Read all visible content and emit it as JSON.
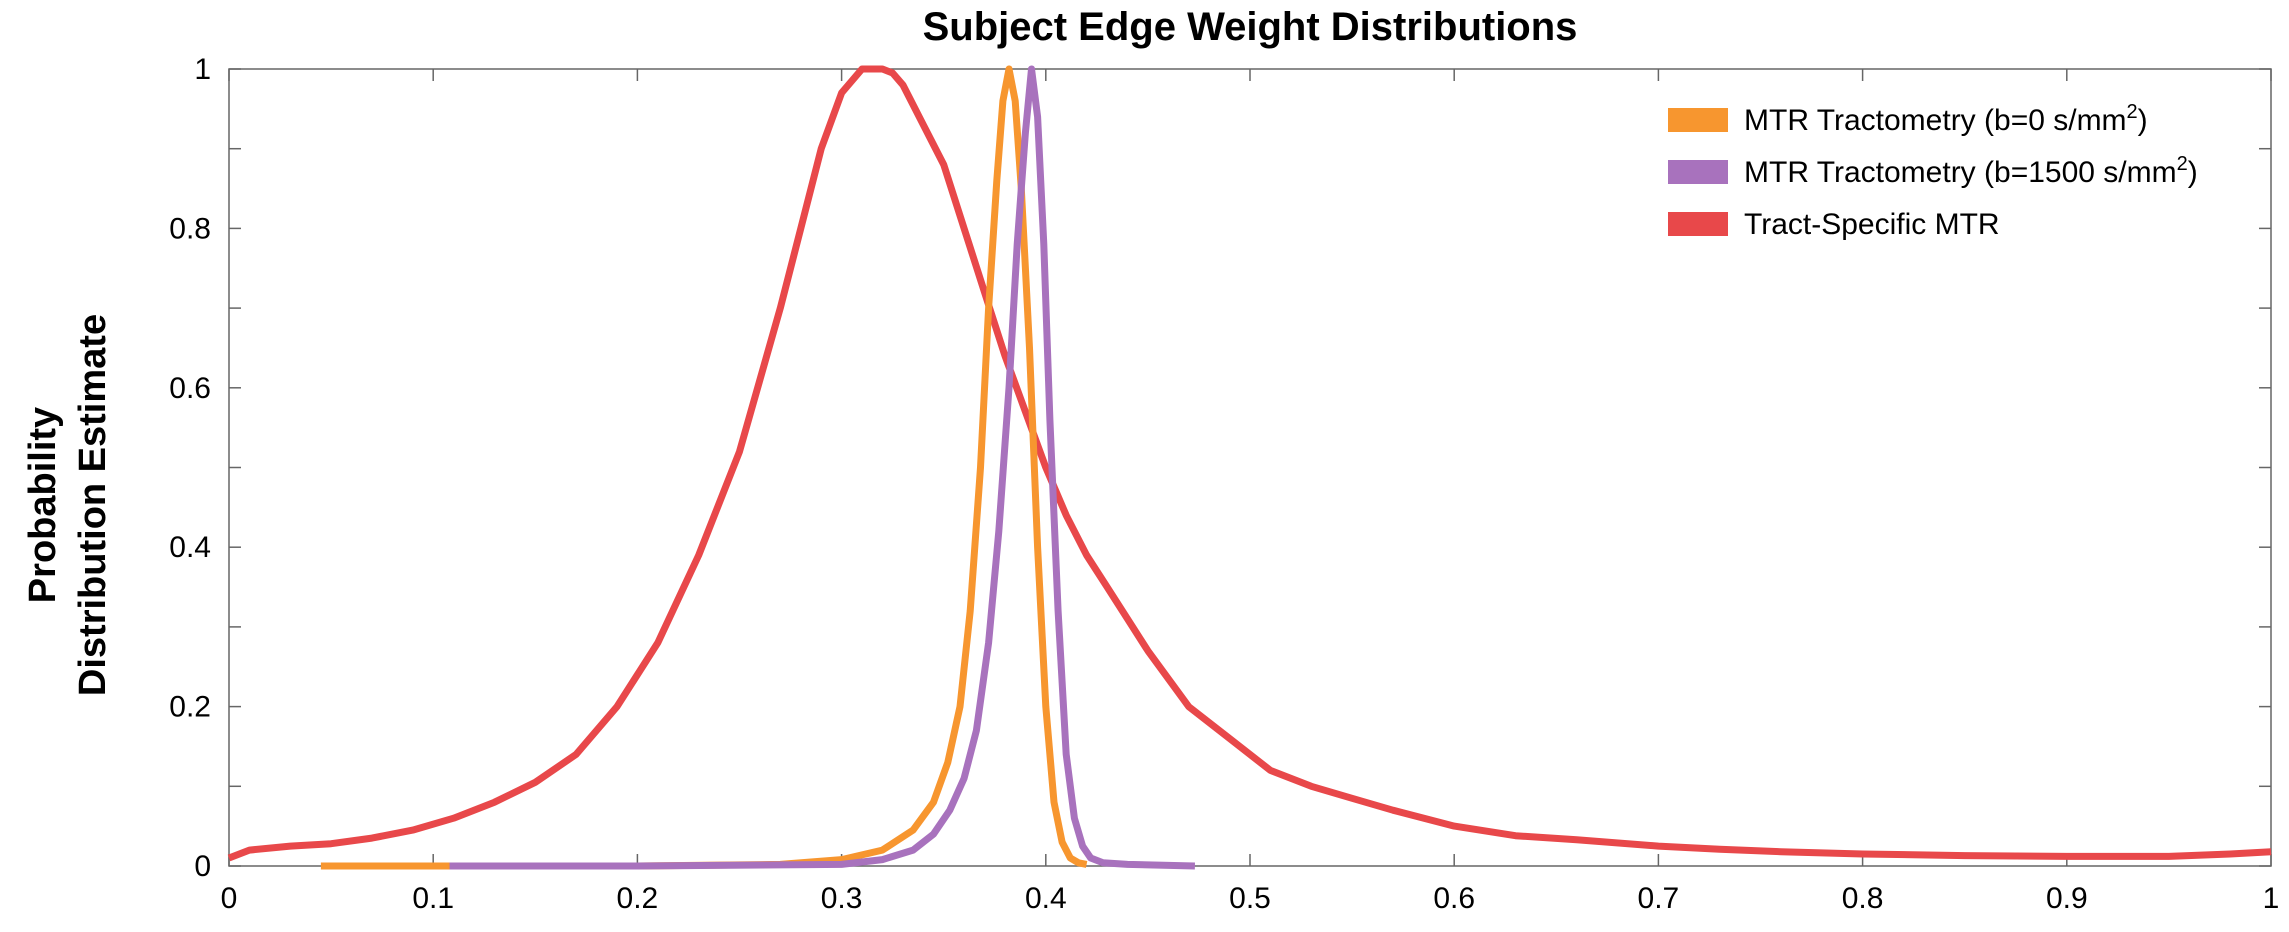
{
  "chart_data": {
    "type": "line",
    "title": "Subject Edge Weight Distributions",
    "xlabel": "",
    "ylabel_lines": [
      "Probability",
      "Distribution Estimate"
    ],
    "xlim": [
      0,
      1
    ],
    "ylim": [
      0,
      1
    ],
    "x_ticks": [
      0,
      0.1,
      0.2,
      0.3,
      0.4,
      0.5,
      0.6,
      0.7,
      0.8,
      0.9,
      1
    ],
    "x_tick_labels": [
      "0",
      "0.1",
      "0.2",
      "0.3",
      "0.4",
      "0.5",
      "0.6",
      "0.7",
      "0.8",
      "0.9",
      "1"
    ],
    "y_ticks": [
      0,
      0.2,
      0.4,
      0.6,
      0.8,
      1
    ],
    "y_tick_labels": [
      "0",
      "0.2",
      "0.4",
      "0.6",
      "0.8",
      "1"
    ],
    "grid": false,
    "legend_position": "top-right",
    "series": [
      {
        "name": "MTR Tractometry (b=0 s/mm²)",
        "legend_parts": [
          "MTR Tractometry (b=0 s/mm",
          "2",
          ")"
        ],
        "color": "#f7962f",
        "x": [
          0.045,
          0.1,
          0.2,
          0.27,
          0.3,
          0.32,
          0.335,
          0.345,
          0.352,
          0.358,
          0.363,
          0.368,
          0.372,
          0.376,
          0.379,
          0.382,
          0.385,
          0.388,
          0.392,
          0.396,
          0.4,
          0.404,
          0.408,
          0.412,
          0.416,
          0.42
        ],
        "y": [
          0,
          0,
          0,
          0.002,
          0.008,
          0.02,
          0.045,
          0.08,
          0.13,
          0.2,
          0.32,
          0.5,
          0.7,
          0.86,
          0.96,
          1.0,
          0.96,
          0.85,
          0.65,
          0.4,
          0.2,
          0.08,
          0.03,
          0.01,
          0.004,
          0.002
        ]
      },
      {
        "name": "MTR Tractometry (b=1500 s/mm²)",
        "legend_parts": [
          "MTR Tractometry (b=1500 s/mm",
          "2",
          ")"
        ],
        "color": "#a872bd",
        "x": [
          0.108,
          0.2,
          0.3,
          0.32,
          0.335,
          0.345,
          0.353,
          0.36,
          0.366,
          0.372,
          0.377,
          0.382,
          0.386,
          0.39,
          0.393,
          0.396,
          0.399,
          0.402,
          0.406,
          0.41,
          0.414,
          0.418,
          0.422,
          0.428,
          0.44,
          0.473
        ],
        "y": [
          0,
          0,
          0.002,
          0.008,
          0.02,
          0.04,
          0.07,
          0.11,
          0.17,
          0.28,
          0.42,
          0.6,
          0.78,
          0.92,
          1.0,
          0.94,
          0.78,
          0.56,
          0.32,
          0.14,
          0.06,
          0.025,
          0.01,
          0.004,
          0.002,
          0
        ]
      },
      {
        "name": "Tract-Specific MTR",
        "legend_parts": [
          "Tract-Specific MTR"
        ],
        "color": "#e8484a",
        "x": [
          0,
          0.01,
          0.03,
          0.05,
          0.07,
          0.09,
          0.11,
          0.13,
          0.15,
          0.17,
          0.19,
          0.21,
          0.23,
          0.25,
          0.27,
          0.28,
          0.29,
          0.3,
          0.31,
          0.32,
          0.325,
          0.33,
          0.34,
          0.35,
          0.36,
          0.37,
          0.38,
          0.39,
          0.4,
          0.41,
          0.42,
          0.43,
          0.44,
          0.45,
          0.47,
          0.49,
          0.51,
          0.53,
          0.55,
          0.57,
          0.6,
          0.63,
          0.66,
          0.7,
          0.73,
          0.76,
          0.8,
          0.85,
          0.9,
          0.95,
          0.98,
          1.0
        ],
        "y": [
          0.01,
          0.02,
          0.025,
          0.028,
          0.035,
          0.045,
          0.06,
          0.08,
          0.105,
          0.14,
          0.2,
          0.28,
          0.39,
          0.52,
          0.7,
          0.8,
          0.9,
          0.97,
          1.0,
          1.0,
          0.995,
          0.98,
          0.93,
          0.88,
          0.8,
          0.72,
          0.64,
          0.57,
          0.5,
          0.44,
          0.39,
          0.35,
          0.31,
          0.27,
          0.2,
          0.16,
          0.12,
          0.1,
          0.085,
          0.07,
          0.05,
          0.038,
          0.033,
          0.025,
          0.021,
          0.018,
          0.015,
          0.013,
          0.012,
          0.012,
          0.015,
          0.018
        ]
      }
    ]
  }
}
